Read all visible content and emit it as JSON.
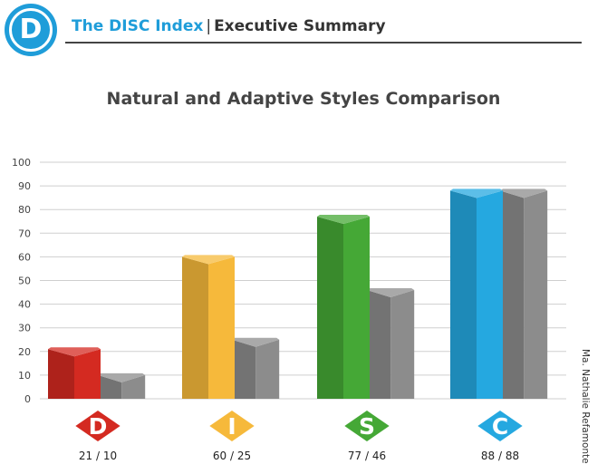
{
  "header": {
    "logo_letter": "D",
    "brand": "The DISC Index",
    "separator": "|",
    "section": "Executive Summary"
  },
  "side_note": "Ma. Nathalie Refamonte",
  "chart_data": {
    "type": "bar",
    "title": "Natural and Adaptive Styles Comparison",
    "categories": [
      "D",
      "I",
      "S",
      "C"
    ],
    "series": [
      {
        "values": [
          21,
          60,
          77,
          88
        ]
      },
      {
        "values": [
          10,
          25,
          46,
          88
        ]
      }
    ],
    "value_labels": [
      "21 / 10",
      "60 / 25",
      "77 / 46",
      "88 / 88"
    ],
    "category_colors": [
      "#d42a21",
      "#f6b93b",
      "#45a836",
      "#25a8e0"
    ],
    "secondary_color": "#8c8c8c",
    "ylim": [
      0,
      100
    ],
    "yticks": [
      0,
      10,
      20,
      30,
      40,
      50,
      60,
      70,
      80,
      90,
      100
    ],
    "grid": true
  }
}
